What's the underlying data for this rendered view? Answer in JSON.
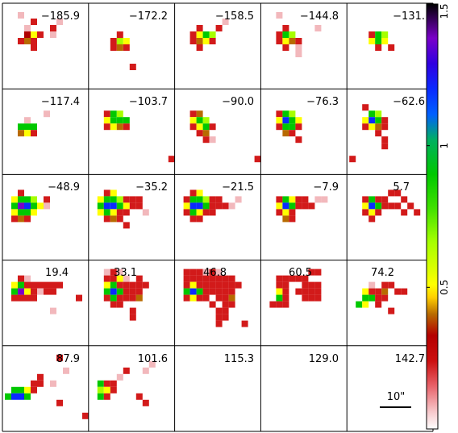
{
  "panels": [
    {
      "label": "−185.9"
    },
    {
      "label": "−172.2"
    },
    {
      "label": "−158.5"
    },
    {
      "label": "−144.8"
    },
    {
      "label": "−131."
    },
    {
      "label": "−117.4"
    },
    {
      "label": "−103.7"
    },
    {
      "label": "−90.0"
    },
    {
      "label": "−76.3"
    },
    {
      "label": "−62.6"
    },
    {
      "label": "−48.9"
    },
    {
      "label": "−35.2"
    },
    {
      "label": "−21.5"
    },
    {
      "label": "−7.9"
    },
    {
      "label": "5.7"
    },
    {
      "label": "19.4"
    },
    {
      "label": "33.1"
    },
    {
      "label": "46.8"
    },
    {
      "label": "60.5"
    },
    {
      "label": "74.2"
    },
    {
      "label": "87.9"
    },
    {
      "label": "101.6"
    },
    {
      "label": "115.3"
    },
    {
      "label": "129.0"
    },
    {
      "label": "142.7"
    }
  ],
  "colorbar": {
    "ticks": [
      {
        "value": 0.5,
        "label": "0.5"
      },
      {
        "value": 1.0,
        "label": "1"
      },
      {
        "value": 1.5,
        "label": "1.5"
      }
    ],
    "range": [
      0,
      1.5
    ]
  },
  "scale_bar": {
    "label": "10\""
  },
  "colors": {
    "pink": "#f2b8bc",
    "red": "#d21a1a",
    "darkred": "#b00000",
    "brown": "#b86a00",
    "yellow": "#ffff00",
    "lime": "#a6ff00",
    "green": "#00c800",
    "blue": "#0a2aff",
    "purple": "#7a00c8"
  }
}
